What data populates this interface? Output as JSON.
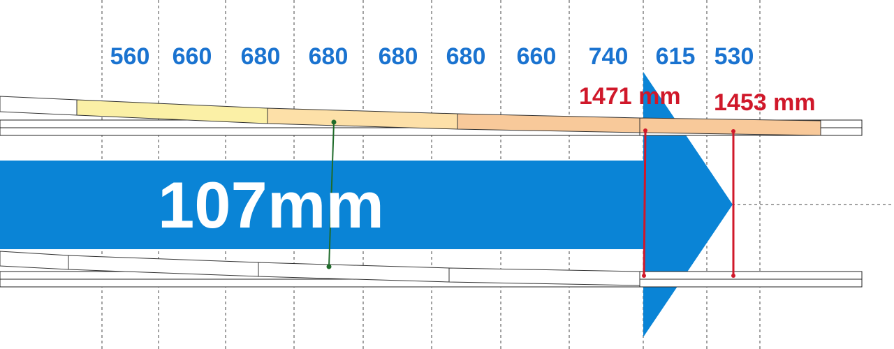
{
  "segment_lengths": [
    "560",
    "660",
    "680",
    "680",
    "680",
    "680",
    "660",
    "740",
    "615",
    "530"
  ],
  "measurements": {
    "measure_1": "1471 mm",
    "measure_2": "1453 mm"
  },
  "main_label": "107mm",
  "colors": {
    "arrow": "#0a84d6",
    "blue_text": "#1a73d0",
    "red": "#d0182a",
    "green": "#1f6b2a",
    "yellow_piece": "#fbf0a6",
    "light_orange_piece": "#fde0a8",
    "orange_piece": "#f8c99a"
  }
}
